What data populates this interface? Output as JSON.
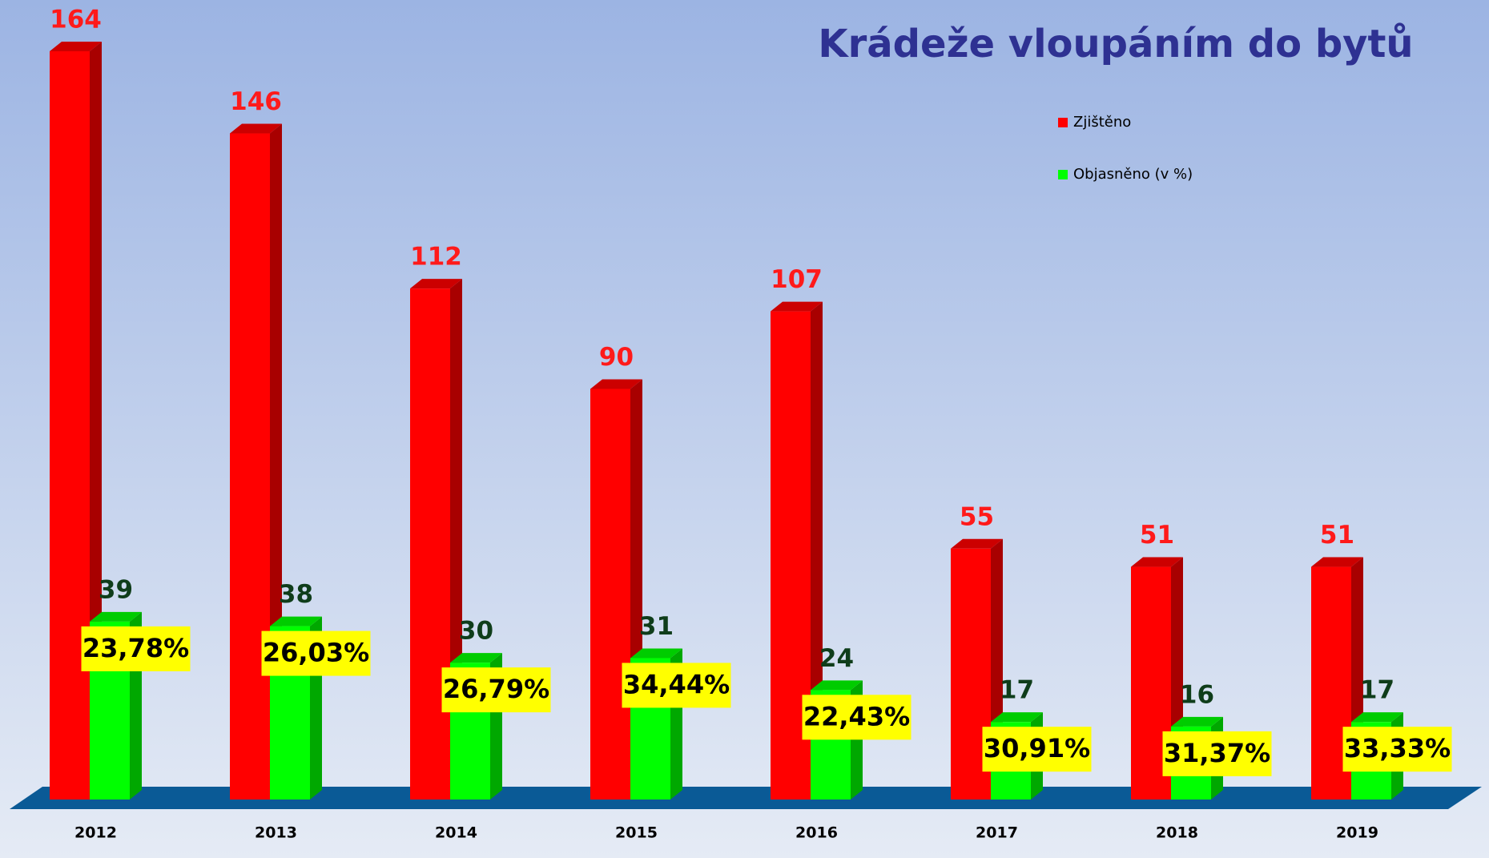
{
  "chart_data": {
    "type": "bar3d",
    "title": "Krádeže vloupáním do bytů",
    "categories": [
      "2012",
      "2013",
      "2014",
      "2015",
      "2016",
      "2017",
      "2018",
      "2019"
    ],
    "series": [
      {
        "name": "Zjištěno",
        "color": "#ff0000",
        "values": [
          164,
          146,
          112,
          90,
          107,
          55,
          51,
          51
        ]
      },
      {
        "name": "Objasněno (v %)",
        "color": "#00ff00",
        "values": [
          39,
          38,
          30,
          31,
          24,
          17,
          16,
          17
        ]
      }
    ],
    "annotations": [
      "23,78%",
      "26,03%",
      "26,79%",
      "34,44%",
      "22,43%",
      "30,91%",
      "31,37%",
      "33,33%"
    ],
    "legend": "top-right"
  }
}
